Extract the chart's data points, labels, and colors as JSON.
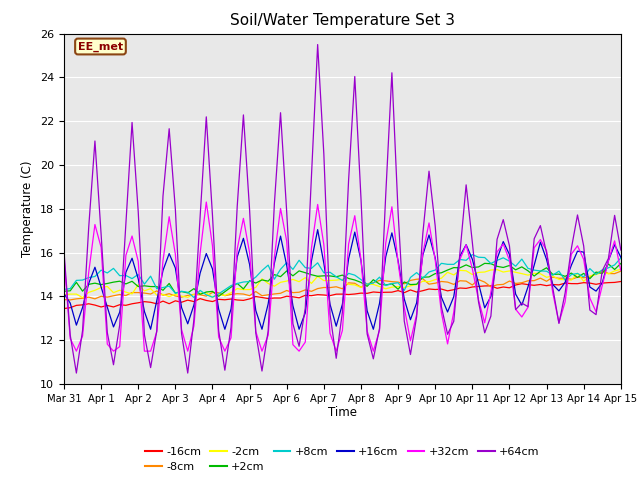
{
  "title": "Soil/Water Temperature Set 3",
  "xlabel": "Time",
  "ylabel": "Temperature (C)",
  "xlim": [
    0,
    15
  ],
  "ylim": [
    10,
    26
  ],
  "yticks": [
    10,
    12,
    14,
    16,
    18,
    20,
    22,
    24,
    26
  ],
  "xtick_labels": [
    "Mar 31",
    "Apr 1",
    "Apr 2",
    "Apr 3",
    "Apr 4",
    "Apr 5",
    "Apr 6",
    "Apr 7",
    "Apr 8",
    "Apr 9",
    "Apr 10",
    "Apr 11",
    "Apr 12",
    "Apr 13",
    "Apr 14",
    "Apr 15"
  ],
  "bg_color": "#e8e8e8",
  "annotation_text": "EE_met",
  "annotation_bg": "#ffffcc",
  "annotation_border": "#8b4513",
  "series_colors": {
    "-16cm": "#ff0000",
    "-8cm": "#ff8800",
    "-2cm": "#ffff00",
    "+2cm": "#00bb00",
    "+8cm": "#00cccc",
    "+16cm": "#0000cc",
    "+32cm": "#ff00ff",
    "+64cm": "#9900cc"
  },
  "legend_order": [
    "-16cm",
    "-8cm",
    "-2cm",
    "+2cm",
    "+8cm",
    "+16cm",
    "+32cm",
    "+64cm"
  ]
}
